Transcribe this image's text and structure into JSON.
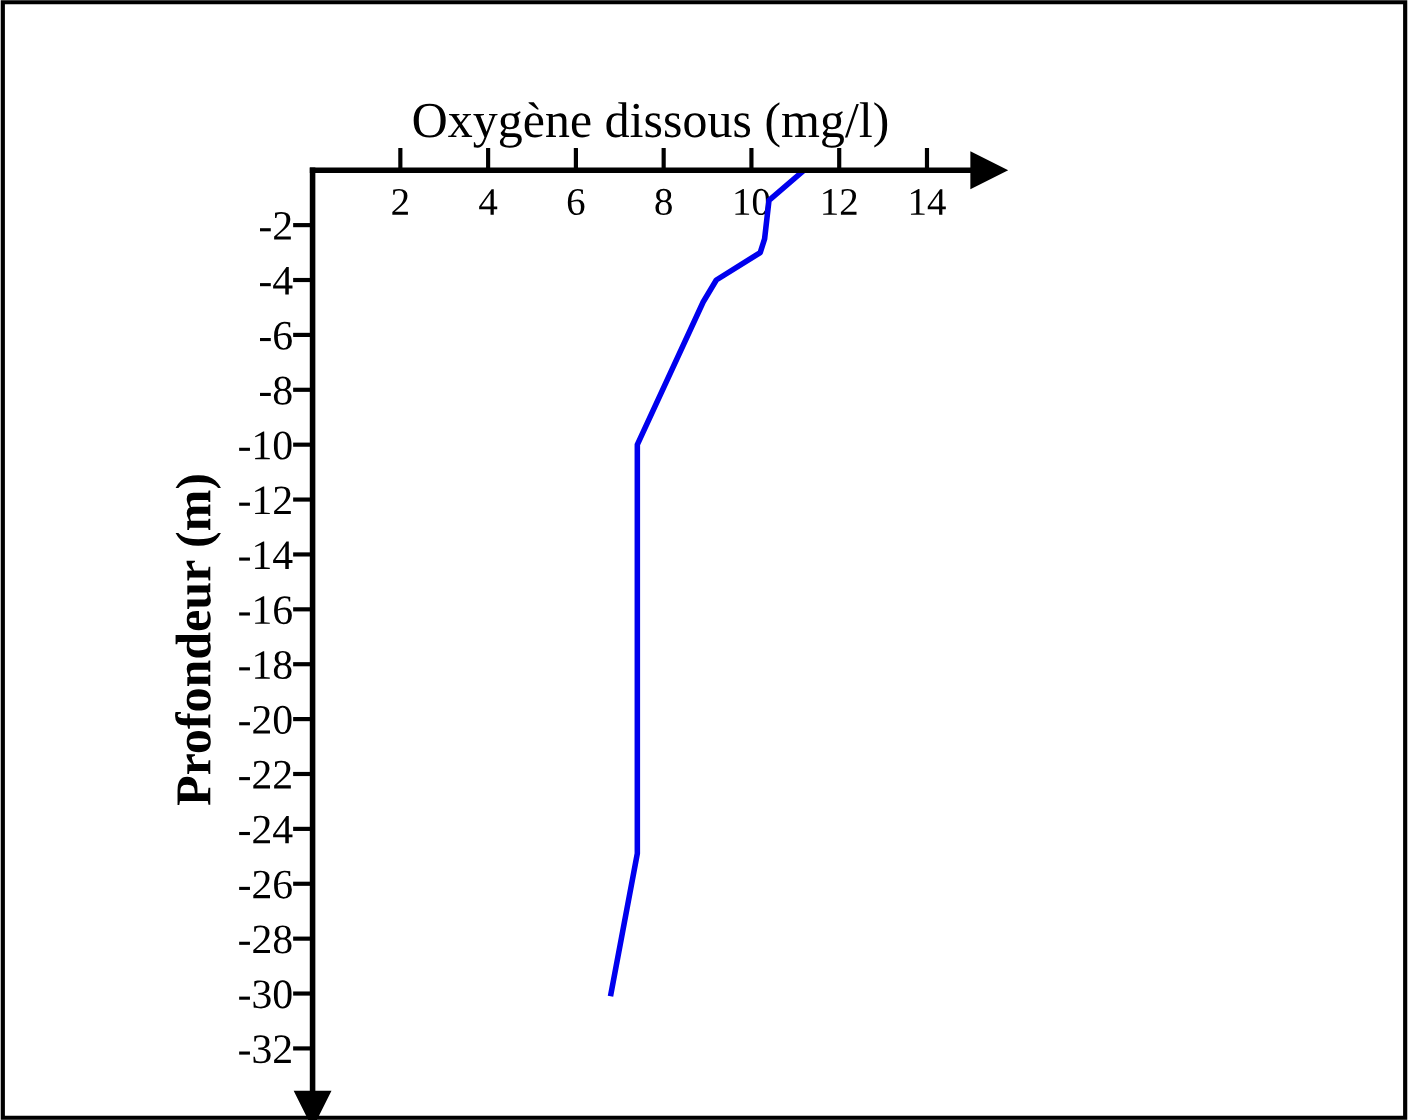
{
  "chart_data": {
    "type": "line",
    "xlabel": "Oxygène dissous (mg/l)",
    "ylabel": "Profondeur (m)",
    "series": [
      {
        "color": "#0000ee",
        "x": [
          11.2,
          10.4,
          10.3,
          10.2,
          9.2,
          8.9,
          7.4,
          7.4,
          6.8
        ],
        "values": [
          0,
          -1.1,
          -2.5,
          -3.0,
          -4.0,
          -4.8,
          -10.0,
          -24.9,
          -30.0
        ]
      }
    ],
    "xlim": [
      0,
      15.4
    ],
    "ylim": [
      -34.2,
      0
    ],
    "xticks": [
      2,
      4,
      6,
      8,
      10,
      12,
      14
    ],
    "yticks": [
      -2,
      -4,
      -6,
      -8,
      -10,
      -12,
      -14,
      -16,
      -18,
      -20,
      -22,
      -24,
      -26,
      -28,
      -30,
      -32
    ],
    "grid": false,
    "legend": false,
    "marker": "none",
    "line_style": "solid"
  }
}
